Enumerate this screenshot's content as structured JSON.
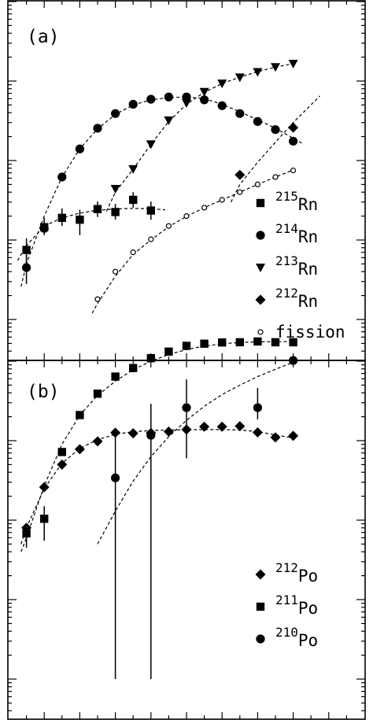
{
  "chart_data": [
    {
      "type": "scatter",
      "panel_label": "(a)",
      "yscale": "log",
      "grid": false,
      "legend_position": "bottom-right",
      "series": [
        {
          "name": "215Rn",
          "label_mass": "215",
          "label_element": "Rn",
          "marker": "square",
          "x": [
            1,
            2,
            3,
            4,
            5,
            6,
            7,
            8
          ],
          "y": [
            0.075,
            0.145,
            0.19,
            0.18,
            0.245,
            0.225,
            0.32,
            0.235
          ],
          "err": [
            [
              0.045,
              0.105
            ],
            [
              0.115,
              0.19
            ],
            [
              0.15,
              0.25
            ],
            [
              0.115,
              0.24
            ],
            [
              0.195,
              0.305
            ],
            [
              0.18,
              0.285
            ],
            [
              0.255,
              0.4
            ],
            [
              0.18,
              0.305
            ]
          ]
        },
        {
          "name": "214Rn",
          "label_mass": "214",
          "label_element": "Rn",
          "marker": "circle",
          "x": [
            1,
            2,
            3,
            4,
            5,
            6,
            7,
            8,
            9,
            10,
            11,
            12,
            13,
            14,
            15,
            16
          ],
          "y": [
            0.045,
            0.14,
            0.62,
            1.4,
            2.55,
            3.9,
            5.1,
            5.9,
            6.3,
            6.3,
            5.8,
            4.9,
            3.9,
            3.1,
            2.45,
            1.75
          ],
          "err": [
            [
              0.028,
              0.065
            ],
            null,
            null,
            null,
            null,
            null,
            null,
            null,
            null,
            null,
            null,
            null,
            null,
            null,
            null,
            null
          ]
        },
        {
          "name": "213Rn",
          "label_mass": "213",
          "label_element": "Rn",
          "marker": "triangle-down",
          "x": [
            6,
            7,
            8,
            9,
            10,
            11,
            12,
            13,
            14,
            15,
            16
          ],
          "y": [
            0.44,
            0.78,
            1.6,
            3.2,
            5.3,
            7.3,
            9.3,
            11.1,
            13.0,
            15.0,
            16.5
          ]
        },
        {
          "name": "212Rn",
          "label_mass": "212",
          "label_element": "Rn",
          "marker": "diamond",
          "x": [
            13,
            16
          ],
          "y": [
            0.66,
            2.6
          ]
        },
        {
          "name": "fission",
          "marker": "open-circle",
          "x": [
            5,
            6,
            7,
            8,
            9,
            10,
            11,
            12,
            13,
            14,
            15,
            16
          ],
          "y": [
            0.018,
            0.04,
            0.07,
            0.102,
            0.15,
            0.2,
            0.255,
            0.32,
            0.4,
            0.5,
            0.62,
            0.75
          ]
        }
      ],
      "fits": [
        {
          "name": "215Rn",
          "x": [
            0.5,
            1,
            2,
            3,
            4,
            5,
            6,
            7,
            8,
            8.8
          ],
          "y": [
            0.055,
            0.085,
            0.15,
            0.19,
            0.218,
            0.236,
            0.246,
            0.25,
            0.247,
            0.24
          ]
        },
        {
          "name": "214Rn",
          "x": [
            0.7,
            1,
            2,
            3,
            4,
            5,
            6,
            7,
            8,
            9,
            10,
            11,
            12,
            13,
            14,
            15,
            16,
            16.6
          ],
          "y": [
            0.026,
            0.05,
            0.2,
            0.62,
            1.4,
            2.5,
            3.8,
            5.0,
            5.8,
            6.2,
            6.3,
            6.0,
            5.1,
            4.1,
            3.25,
            2.55,
            1.9,
            1.6
          ]
        },
        {
          "name": "213Rn",
          "x": [
            5.5,
            6,
            7,
            8,
            9,
            10,
            11,
            12,
            13,
            14,
            15,
            16
          ],
          "y": [
            0.23,
            0.4,
            0.78,
            1.6,
            3.1,
            5.1,
            7.2,
            9.3,
            11.2,
            13.1,
            15.0,
            16.6
          ]
        },
        {
          "name": "212Rn",
          "x": [
            12.5,
            13,
            14,
            15,
            16,
            17.5
          ],
          "y": [
            0.3,
            0.5,
            0.95,
            1.7,
            3.0,
            6.5
          ]
        },
        {
          "name": "fission",
          "x": [
            4.7,
            5,
            6,
            7,
            8,
            9,
            10,
            11,
            12,
            13,
            14,
            15,
            16
          ],
          "y": [
            0.012,
            0.016,
            0.035,
            0.066,
            0.1,
            0.147,
            0.198,
            0.255,
            0.32,
            0.4,
            0.5,
            0.62,
            0.76
          ]
        }
      ],
      "xlim": [
        0.5,
        18.5
      ],
      "ylim": [
        0.01,
        20
      ]
    },
    {
      "type": "scatter",
      "panel_label": "(b)",
      "yscale": "log",
      "grid": false,
      "legend_position": "bottom-right",
      "series": [
        {
          "name": "212Po",
          "label_mass": "212",
          "label_element": "Po",
          "marker": "diamond",
          "x": [
            1,
            2,
            3,
            4,
            5,
            6,
            7,
            8,
            9,
            10,
            11,
            12,
            13,
            14,
            15,
            16
          ],
          "y": [
            0.08,
            0.26,
            0.5,
            0.78,
            0.98,
            1.26,
            1.24,
            1.25,
            1.3,
            1.38,
            1.5,
            1.5,
            1.52,
            1.27,
            1.1,
            1.15
          ]
        },
        {
          "name": "211Po",
          "label_mass": "211",
          "label_element": "Po",
          "marker": "square",
          "x": [
            1,
            2,
            3,
            4,
            5,
            6,
            7,
            8,
            9,
            10,
            11,
            12,
            13,
            14,
            15,
            16
          ],
          "y": [
            0.068,
            0.104,
            0.72,
            2.1,
            3.9,
            6.4,
            8.2,
            10.9,
            13.2,
            15.6,
            16.6,
            17.2,
            17.3,
            17.7,
            17.3,
            17.3
          ],
          "err": [
            [
              0.045,
              0.09
            ],
            [
              0.055,
              0.15
            ],
            null,
            null,
            null,
            null,
            null,
            null,
            null,
            null,
            null,
            null,
            null,
            null,
            null,
            null
          ]
        },
        {
          "name": "210Po",
          "label_mass": "210",
          "label_element": "Po",
          "marker": "circle",
          "x": [
            6,
            8,
            10,
            14,
            16
          ],
          "y": [
            0.34,
            1.17,
            2.6,
            2.6,
            10.2
          ],
          "err": [
            [
              0.001,
              1.3
            ],
            [
              0.001,
              2.9
            ],
            [
              0.6,
              5.9
            ],
            [
              1.85,
              4.6
            ],
            null
          ]
        }
      ],
      "fits": [
        {
          "name": "212Po",
          "x": [
            0.7,
            1,
            2,
            3,
            4,
            5,
            6,
            7,
            8,
            9,
            10,
            11,
            12,
            13,
            14,
            15,
            16
          ],
          "y": [
            0.05,
            0.08,
            0.25,
            0.52,
            0.8,
            1.03,
            1.2,
            1.3,
            1.34,
            1.36,
            1.37,
            1.38,
            1.38,
            1.36,
            1.3,
            1.18,
            1.08
          ]
        },
        {
          "name": "211Po",
          "x": [
            0.7,
            1,
            2,
            3,
            4,
            5,
            6,
            7,
            8,
            9,
            10,
            11,
            12,
            13,
            14,
            15,
            16
          ],
          "y": [
            0.04,
            0.06,
            0.27,
            0.9,
            2.1,
            3.7,
            5.6,
            7.8,
            10.0,
            12.1,
            14.0,
            15.5,
            16.5,
            17.2,
            17.5,
            17.6,
            17.6
          ]
        },
        {
          "name": "210Po",
          "x": [
            5,
            6,
            7,
            8,
            9,
            10,
            11,
            12,
            13,
            14,
            15,
            16
          ],
          "y": [
            0.05,
            0.13,
            0.31,
            0.63,
            1.12,
            1.8,
            2.7,
            3.8,
            5.0,
            6.4,
            7.9,
            9.7
          ]
        }
      ],
      "xlim": [
        0.5,
        18.5
      ],
      "ylim": [
        0.001,
        20
      ]
    }
  ]
}
